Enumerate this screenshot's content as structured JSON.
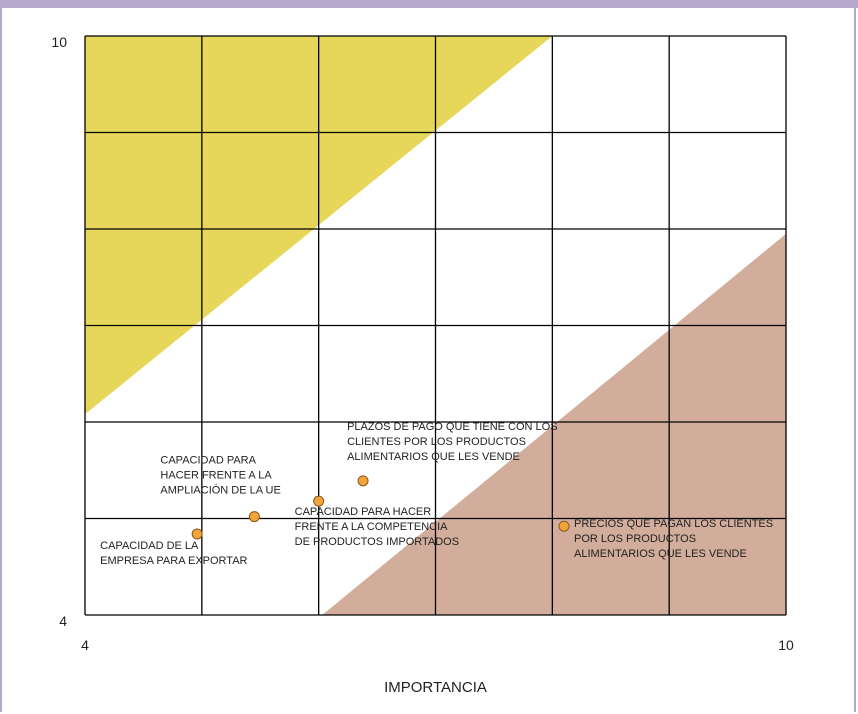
{
  "chart_data": {
    "type": "scatter",
    "xlabel": "IMPORTANCIA",
    "ylabel": "",
    "xlim": [
      4,
      10
    ],
    "ylim": [
      4,
      10
    ],
    "x_ticks": [
      "4",
      "10"
    ],
    "y_ticks": [
      "10",
      "4"
    ],
    "grid": true,
    "regions": [
      {
        "name": "yellow-zone",
        "color": "#e6d75a",
        "polygon": [
          [
            4,
            6.08
          ],
          [
            4,
            10
          ],
          [
            8,
            10
          ]
        ]
      },
      {
        "name": "brown-zone",
        "color": "#d2ad9b",
        "polygon": [
          [
            6.03,
            4
          ],
          [
            10,
            7.95
          ],
          [
            10,
            4
          ]
        ]
      }
    ],
    "points": [
      {
        "x": 4.96,
        "y": 4.84,
        "label": [
          "CAPACIDAD DE LA",
          "EMPRESA PARA EXPORTAR"
        ]
      },
      {
        "x": 5.45,
        "y": 5.02,
        "label": [
          "CAPACIDAD PARA",
          "HACER FRENTE A LA",
          "AMPLIACIÓN DE LA UE"
        ]
      },
      {
        "x": 6.0,
        "y": 5.18,
        "label": [
          "CAPACIDAD PARA HACER",
          "FRENTE A LA COMPETENCIA",
          "DE PRODUCTOS IMPORTADOS"
        ]
      },
      {
        "x": 6.38,
        "y": 5.39,
        "label": [
          "PLAZOS DE  PAGO QUE TIENE CON LOS",
          "CLIENTES POR LOS PRODUCTOS",
          "ALIMENTARIOS QUE LES VENDE"
        ]
      },
      {
        "x": 8.1,
        "y": 4.92,
        "label": [
          "PRECIOS QUE PAGAN LOS CLIENTES",
          "POR LOS PRODUCTOS",
          "ALIMENTARIOS QUE LES VENDE"
        ]
      }
    ],
    "point_color": "#f2a33a"
  }
}
